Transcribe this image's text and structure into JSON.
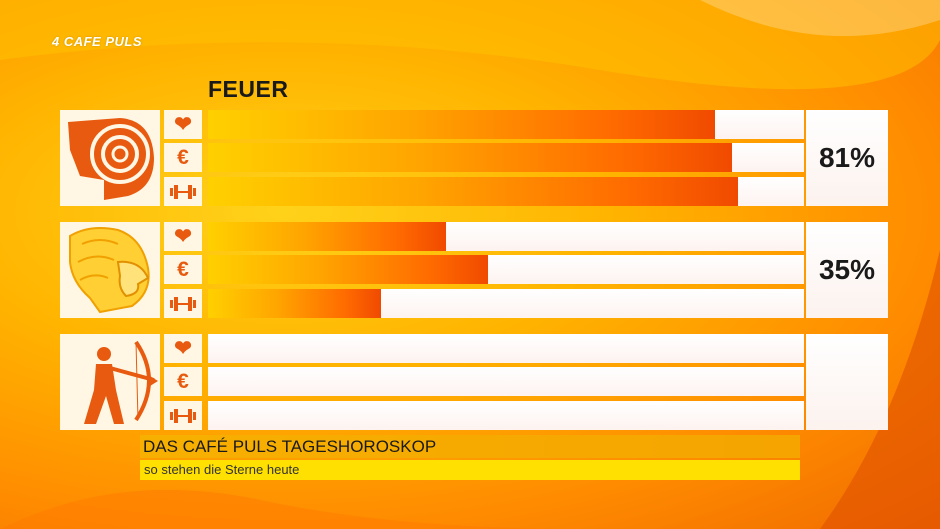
{
  "brand": {
    "logo_text": "4 CAFE PULS"
  },
  "section_title": "FEUER",
  "categories": [
    {
      "name": "love",
      "icon": "heart-icon",
      "glyph": "❤"
    },
    {
      "name": "money",
      "icon": "euro-icon",
      "glyph": "€"
    },
    {
      "name": "fitness",
      "icon": "dumbbell-icon",
      "glyph": ""
    }
  ],
  "signs": [
    {
      "sign": "aries",
      "icon": "ram-icon",
      "percent_label": "81%",
      "bars": [
        0.85,
        0.88,
        0.89
      ]
    },
    {
      "sign": "leo",
      "icon": "lion-icon",
      "percent_label": "35%",
      "bars": [
        0.4,
        0.47,
        0.29
      ]
    },
    {
      "sign": "sagittarius",
      "icon": "archer-icon",
      "percent_label": "",
      "bars": [
        0,
        0,
        0
      ]
    }
  ],
  "colors": {
    "accent": "#e85a10",
    "bar_start": "#ffd000",
    "bar_end": "#f04a00",
    "panel": "#fff7e3"
  },
  "footer": {
    "title": "DAS CAFÉ PULS TAGESHOROSKOP",
    "subtitle": "so stehen die Sterne heute"
  }
}
